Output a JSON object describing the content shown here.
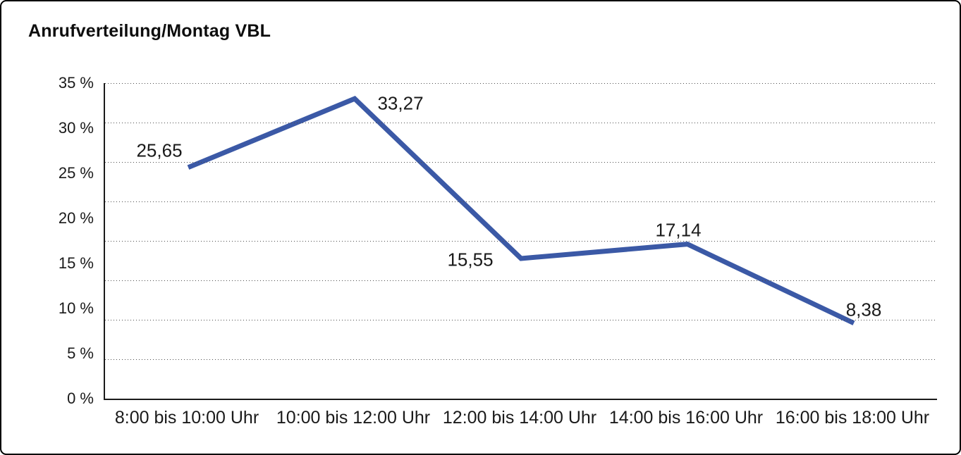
{
  "chart_data": {
    "type": "line",
    "title": "Anrufverteilung/Montag VBL",
    "categories": [
      "8:00 bis 10:00 Uhr",
      "10:00 bis 12:00 Uhr",
      "12:00 bis 14:00 Uhr",
      "14:00 bis 16:00 Uhr",
      "16:00 bis 18:00 Uhr"
    ],
    "values": [
      25.65,
      33.27,
      15.55,
      17.14,
      8.38
    ],
    "point_labels": [
      "25,65",
      "33,27",
      "15,55",
      "17,14",
      "8,38"
    ],
    "y_ticks": [
      35,
      30,
      25,
      20,
      15,
      10,
      5,
      0
    ],
    "y_tick_labels": [
      "35 %",
      "30 %",
      "25 %",
      "20 %",
      "15 %",
      "10 %",
      "5 %",
      "0 %"
    ],
    "ylim": [
      0,
      35
    ],
    "xlabel": "",
    "ylabel": "",
    "legend": "none",
    "grid": "horizontal dotted",
    "gridline_count": 8,
    "line_color": "#3B59A6",
    "decimal_separator": ","
  }
}
